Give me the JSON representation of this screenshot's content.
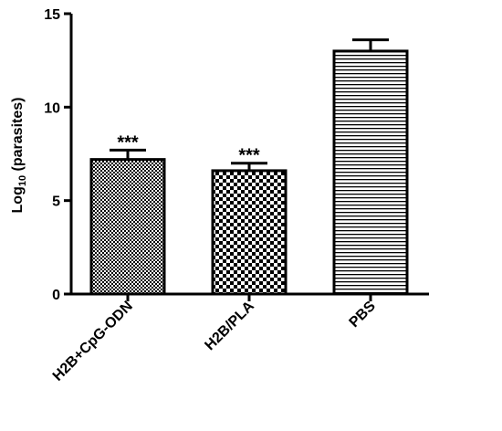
{
  "chart_data": {
    "type": "bar",
    "ylabel": {
      "main": "Log",
      "sub": "10",
      "rest": " (parasites)"
    },
    "categories": [
      "H2B+CpG-ODN",
      "H2B/PLA",
      "PBS"
    ],
    "values": [
      7.2,
      6.6,
      13.0
    ],
    "errors": [
      0.5,
      0.4,
      0.6
    ],
    "patterns": [
      "fine-check",
      "check",
      "hlines"
    ],
    "color": "#000000",
    "annotations": [
      {
        "category": "H2B+CpG-ODN",
        "text": "***"
      },
      {
        "category": "H2B/PLA",
        "text": "***"
      }
    ],
    "ylim": [
      0,
      15
    ],
    "yticks": [
      0,
      5,
      10,
      15
    ]
  }
}
